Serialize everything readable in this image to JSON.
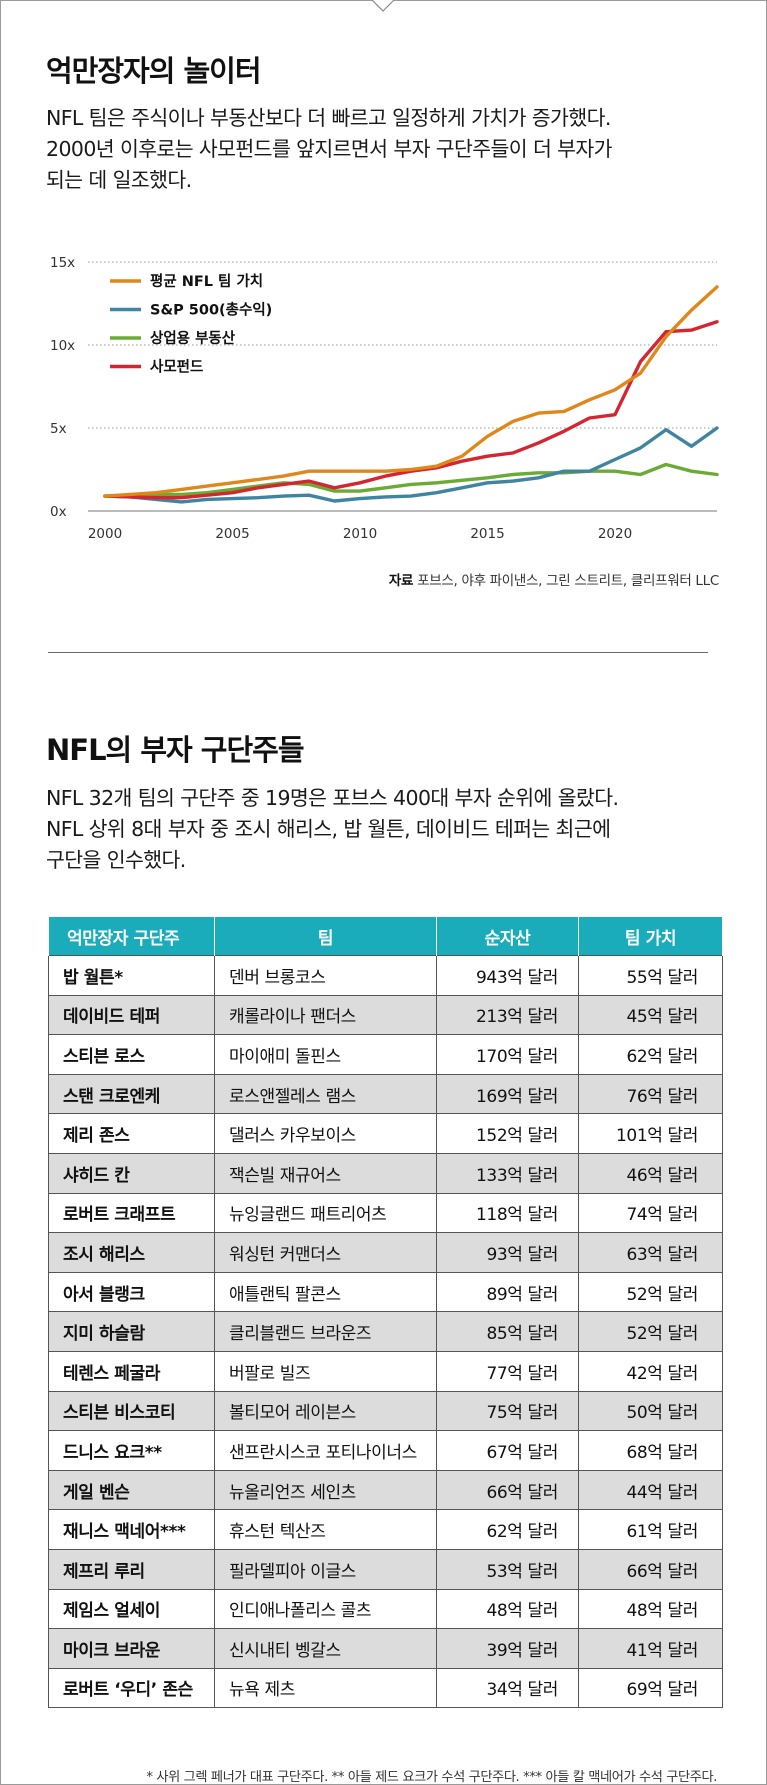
{
  "section1": {
    "title": "억만장자의 놀이터",
    "lead_lines": [
      "NFL 팀은 주식이나 부동산보다 더 빠르고 일정하게 가치가 증가했다.",
      "2000년 이후로는 사모펀드를 앞지르면서 부자 구단주들이 더 부자가",
      "되는 데 일조했다."
    ]
  },
  "chart_data": {
    "type": "line",
    "title": "",
    "xlabel": "",
    "ylabel": "",
    "x_ticks": [
      "2000",
      "2005",
      "2010",
      "2015",
      "2020"
    ],
    "y_ticks": [
      "15x",
      "10x",
      "5x",
      "0x"
    ],
    "xlim": [
      2000,
      2024
    ],
    "ylim": [
      0,
      15
    ],
    "grid": "horizontal dotted",
    "legend_position": "top-left",
    "x": [
      2000,
      2001,
      2002,
      2003,
      2004,
      2005,
      2006,
      2007,
      2008,
      2009,
      2010,
      2011,
      2012,
      2013,
      2014,
      2015,
      2016,
      2017,
      2018,
      2019,
      2020,
      2021,
      2022,
      2023,
      2024
    ],
    "series": [
      {
        "name": "평균 NFL 팀 가치",
        "color": "#e0871c",
        "values": [
          0.9,
          1.0,
          1.1,
          1.3,
          1.5,
          1.7,
          1.9,
          2.1,
          2.4,
          2.4,
          2.4,
          2.4,
          2.5,
          2.7,
          3.3,
          4.5,
          5.4,
          5.9,
          6.0,
          6.7,
          7.3,
          8.3,
          10.5,
          12.1,
          13.5
        ]
      },
      {
        "name": "S&P 500(총수익)",
        "color": "#3f84a0",
        "values": [
          0.9,
          0.85,
          0.7,
          0.55,
          0.7,
          0.75,
          0.8,
          0.9,
          0.95,
          0.6,
          0.75,
          0.85,
          0.9,
          1.1,
          1.4,
          1.7,
          1.8,
          2.0,
          2.4,
          2.4,
          3.1,
          3.8,
          4.9,
          3.9,
          5.0
        ]
      },
      {
        "name": "상업용 부동산",
        "color": "#6bab35",
        "values": [
          0.9,
          0.95,
          1.0,
          1.0,
          1.1,
          1.3,
          1.5,
          1.7,
          1.6,
          1.2,
          1.2,
          1.4,
          1.6,
          1.7,
          1.85,
          2.0,
          2.2,
          2.3,
          2.3,
          2.4,
          2.4,
          2.2,
          2.8,
          2.4,
          2.2
        ]
      },
      {
        "name": "사모펀드",
        "color": "#d32630",
        "values": [
          0.9,
          0.85,
          0.8,
          0.8,
          0.95,
          1.1,
          1.4,
          1.6,
          1.8,
          1.4,
          1.7,
          2.1,
          2.4,
          2.6,
          3.0,
          3.3,
          3.5,
          4.1,
          4.8,
          5.6,
          5.8,
          9.0,
          10.8,
          10.9,
          11.4
        ]
      }
    ]
  },
  "source": {
    "label": "자료",
    "text": "포브스, 야후 파이낸스, 그린 스트리트, 클리프워터 LLC"
  },
  "section2": {
    "title": "NFL의 부자 구단주들",
    "lead_lines": [
      "NFL 32개 팀의 구단주 중 19명은 포브스 400대 부자 순위에 올랐다.",
      "NFL 상위 8대 부자 중 조시 해리스, 밥 월튼, 데이비드 테퍼는 최근에",
      "구단을 인수했다."
    ]
  },
  "table": {
    "headers": [
      "억만장자 구단주",
      "팀",
      "순자산",
      "팀 가치"
    ],
    "rows": [
      {
        "owner": "밥 월튼*",
        "team": "덴버 브롱코스",
        "net_worth": "943억 달러",
        "team_value": "55억 달러"
      },
      {
        "owner": "데이비드 테퍼",
        "team": "캐롤라이나 팬더스",
        "net_worth": "213억 달러",
        "team_value": "45억 달러"
      },
      {
        "owner": "스티븐 로스",
        "team": "마이애미 돌핀스",
        "net_worth": "170억 달러",
        "team_value": "62억 달러"
      },
      {
        "owner": "스탠 크로엔케",
        "team": "로스앤젤레스 램스",
        "net_worth": "169억 달러",
        "team_value": "76억 달러"
      },
      {
        "owner": "제리 존스",
        "team": " 댈러스 카우보이스",
        "net_worth": "152억 달러",
        "team_value": "101억 달러"
      },
      {
        "owner": "샤히드 칸",
        "team": "잭슨빌 재규어스",
        "net_worth": "133억 달러",
        "team_value": "46억 달러"
      },
      {
        "owner": "로버트 크래프트",
        "team": "뉴잉글랜드 패트리어츠",
        "net_worth": "118억 달러",
        "team_value": "74억 달러"
      },
      {
        "owner": "조시 해리스",
        "team": "워싱턴 커맨더스",
        "net_worth": "93억 달러",
        "team_value": "63억 달러"
      },
      {
        "owner": "아서 블랭크",
        "team": "애틀랜틱 팔콘스",
        "net_worth": "89억 달러",
        "team_value": "52억 달러"
      },
      {
        "owner": "지미 하슬람",
        "team": "클리블랜드 브라운즈",
        "net_worth": "85억 달러",
        "team_value": "52억 달러"
      },
      {
        "owner": "테렌스 페굴라",
        "team": "버팔로 빌즈",
        "net_worth": "77억 달러",
        "team_value": "42억 달러"
      },
      {
        "owner": "스티븐 비스코티",
        "team": "볼티모어 레이븐스",
        "net_worth": "75억 달러",
        "team_value": "50억 달러"
      },
      {
        "owner": "드니스 요크**",
        "team": "샌프란시스코 포티나이너스",
        "net_worth": "67억 달러",
        "team_value": "68억 달러"
      },
      {
        "owner": "게일 벤슨",
        "team": "뉴올리언즈 세인츠",
        "net_worth": "66억 달러",
        "team_value": "44억 달러"
      },
      {
        "owner": "재니스 맥네어***",
        "team": "휴스턴 텍산즈",
        "net_worth": "62억 달러",
        "team_value": "61억 달러"
      },
      {
        "owner": "제프리 루리",
        "team": "필라델피아 이글스",
        "net_worth": "53억 달러",
        "team_value": "66억 달러"
      },
      {
        "owner": "제임스 얼세이",
        "team": "인디애나폴리스 콜츠",
        "net_worth": "48억 달러",
        "team_value": "48억 달러"
      },
      {
        "owner": "마이크 브라운",
        "team": "신시내티 벵갈스",
        "net_worth": "39억 달러",
        "team_value": "41억 달러"
      },
      {
        "owner": "로버트 ‘우디’ 존슨",
        "team": "뉴욕 제츠",
        "net_worth": "34억 달러",
        "team_value": "69억 달러"
      }
    ]
  },
  "footnote": "* 사위 그렉 페너가 대표 구단주다.  ** 아들 제드 요크가 수석 구단주다.  *** 아들 칼 맥네어가 수석 구단주다."
}
